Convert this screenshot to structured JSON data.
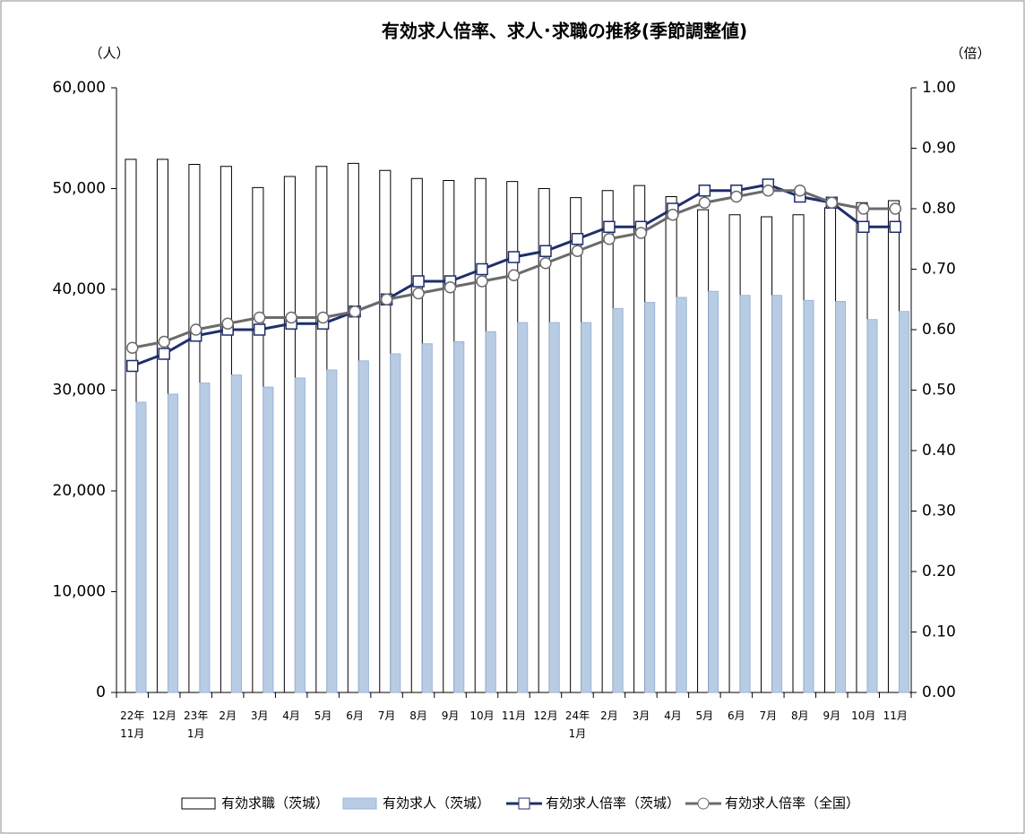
{
  "chart_data": {
    "type": "bar-line",
    "title": "有効求人倍率、求人･求職の推移(季節調整値)",
    "y_label": "（人）",
    "y2_label": "（倍）",
    "categories": [
      "22年\n11月",
      "12月",
      "23年\n1月",
      "2月",
      "3月",
      "4月",
      "5月",
      "6月",
      "7月",
      "8月",
      "9月",
      "10月",
      "11月",
      "12月",
      "24年\n1月",
      "2月",
      "3月",
      "4月",
      "5月",
      "6月",
      "7月",
      "8月",
      "9月",
      "10月",
      "11月"
    ],
    "ylim": [
      0,
      60000
    ],
    "yticks": [
      0,
      {
        "value": 10000,
        "label": "10,000"
      },
      {
        "value": 20000,
        "label": "20,000"
      },
      {
        "value": 30000,
        "label": "30,000"
      },
      {
        "value": 40000,
        "label": "40,000"
      },
      {
        "value": 50000,
        "label": "50,000"
      },
      {
        "value": 60000,
        "label": "60,000"
      }
    ],
    "y2lim": [
      0,
      1
    ],
    "y2ticks": [
      {
        "value": 0,
        "label": "0.00"
      },
      {
        "value": 0.1,
        "label": "0.10"
      },
      {
        "value": 0.2,
        "label": "0.20"
      },
      {
        "value": 0.3,
        "label": "0.30"
      },
      {
        "value": 0.4,
        "label": "0.40"
      },
      {
        "value": 0.5,
        "label": "0.50"
      },
      {
        "value": 0.6,
        "label": "0.60"
      },
      {
        "value": 0.7,
        "label": "0.70"
      },
      {
        "value": 0.8,
        "label": "0.80"
      },
      {
        "value": 0.9,
        "label": "0.90"
      },
      {
        "value": 1,
        "label": "1.00"
      }
    ],
    "series": [
      {
        "name": "有効求職（茨城）",
        "kind": "bar",
        "color": "#ffffff",
        "stroke": "#000000",
        "values": [
          52900,
          52900,
          52400,
          52200,
          50100,
          51200,
          52200,
          52500,
          51800,
          51000,
          50800,
          51000,
          50700,
          50000,
          49100,
          49800,
          50300,
          49200,
          47900,
          47400,
          47200,
          47400,
          48100,
          48600,
          48800
        ]
      },
      {
        "name": "有効求人（茨城）",
        "kind": "bar",
        "color": "#b8cce4",
        "stroke": "#9bb5d6",
        "values": [
          28800,
          29600,
          30700,
          31500,
          30300,
          31200,
          32000,
          32900,
          33600,
          34600,
          34800,
          35800,
          36700,
          36700,
          36700,
          38100,
          38700,
          39200,
          39800,
          39400,
          39400,
          38900,
          38800,
          37000,
          37800
        ]
      },
      {
        "name": "有効求人倍率（茨城）",
        "kind": "line",
        "axis": "y2",
        "color": "#1f2f6b",
        "marker": "square",
        "values": [
          0.54,
          0.56,
          0.59,
          0.6,
          0.6,
          0.61,
          0.61,
          0.63,
          0.65,
          0.68,
          0.68,
          0.7,
          0.72,
          0.73,
          0.75,
          0.77,
          0.77,
          0.8,
          0.83,
          0.83,
          0.84,
          0.82,
          0.81,
          0.77,
          0.77
        ]
      },
      {
        "name": "有効求人倍率（全国）",
        "kind": "line",
        "axis": "y2",
        "color": "#6b6b6b",
        "marker": "circle",
        "values": [
          0.57,
          0.58,
          0.6,
          0.61,
          0.62,
          0.62,
          0.62,
          0.63,
          0.65,
          0.66,
          0.67,
          0.68,
          0.69,
          0.71,
          0.73,
          0.75,
          0.76,
          0.79,
          0.81,
          0.82,
          0.83,
          0.83,
          0.81,
          0.8,
          0.8
        ]
      }
    ]
  }
}
